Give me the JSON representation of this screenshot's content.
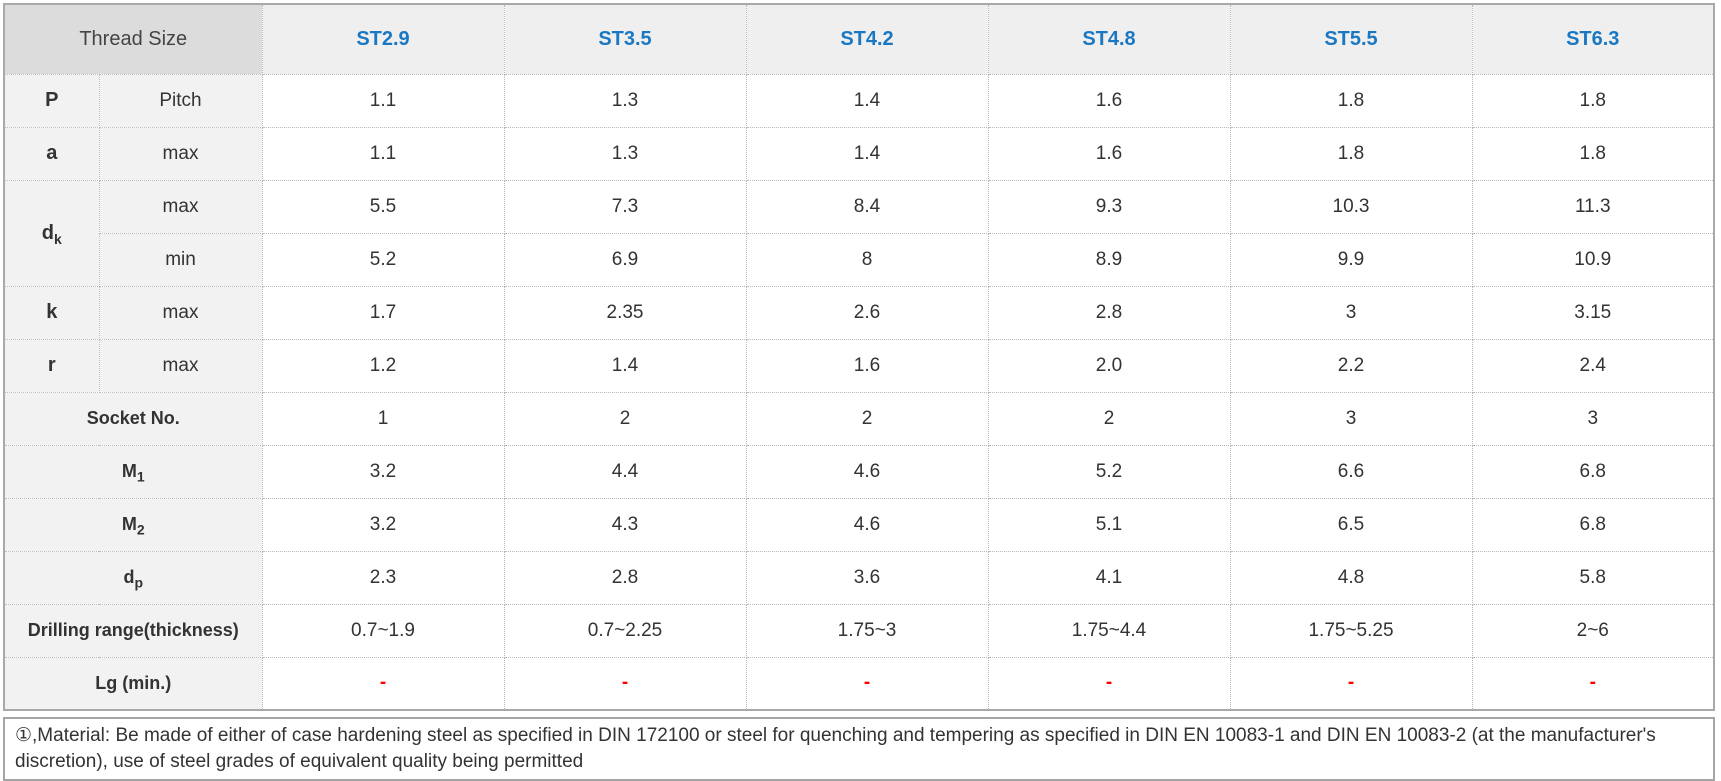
{
  "table": {
    "corner_label": "Thread Size",
    "columns": [
      "ST2.9",
      "ST3.5",
      "ST4.2",
      "ST4.8",
      "ST5.5",
      "ST6.3"
    ],
    "rows": [
      {
        "label": "P",
        "sub": "",
        "qualifier": "Pitch",
        "layout": "two-label",
        "values": [
          "1.1",
          "1.3",
          "1.4",
          "1.6",
          "1.8",
          "1.8"
        ]
      },
      {
        "label": "a",
        "sub": "",
        "qualifier": "max",
        "layout": "two-label",
        "values": [
          "1.1",
          "1.3",
          "1.4",
          "1.6",
          "1.8",
          "1.8"
        ]
      },
      {
        "label": "d",
        "sub": "k",
        "qualifier": "max",
        "layout": "rowspan-first",
        "values": [
          "5.5",
          "7.3",
          "8.4",
          "9.3",
          "10.3",
          "11.3"
        ]
      },
      {
        "label": "",
        "sub": "",
        "qualifier": "min",
        "layout": "rowspan-cont",
        "values": [
          "5.2",
          "6.9",
          "8",
          "8.9",
          "9.9",
          "10.9"
        ]
      },
      {
        "label": "k",
        "sub": "",
        "qualifier": "max",
        "layout": "two-label",
        "values": [
          "1.7",
          "2.35",
          "2.6",
          "2.8",
          "3",
          "3.15"
        ]
      },
      {
        "label": "r",
        "sub": "",
        "qualifier": "max",
        "layout": "two-label",
        "values": [
          "1.2",
          "1.4",
          "1.6",
          "2.0",
          "2.2",
          "2.4"
        ]
      },
      {
        "label": "Socket No.",
        "sub": "",
        "qualifier": "",
        "layout": "merged",
        "values": [
          "1",
          "2",
          "2",
          "2",
          "3",
          "3"
        ]
      },
      {
        "label": "M",
        "sub": "1",
        "qualifier": "",
        "layout": "merged",
        "values": [
          "3.2",
          "4.4",
          "4.6",
          "5.2",
          "6.6",
          "6.8"
        ]
      },
      {
        "label": "M",
        "sub": "2",
        "qualifier": "",
        "layout": "merged",
        "values": [
          "3.2",
          "4.3",
          "4.6",
          "5.1",
          "6.5",
          "6.8"
        ]
      },
      {
        "label": "d",
        "sub": "p",
        "qualifier": "",
        "layout": "merged",
        "values": [
          "2.3",
          "2.8",
          "3.6",
          "4.1",
          "4.8",
          "5.8"
        ]
      },
      {
        "label": "Drilling range(thickness)",
        "sub": "",
        "qualifier": "",
        "layout": "merged",
        "values": [
          "0.7~1.9",
          "0.7~2.25",
          "1.75~3",
          "1.75~4.4",
          "1.75~5.25",
          "2~6"
        ]
      },
      {
        "label": "Lg (min.)",
        "sub": "",
        "qualifier": "",
        "layout": "merged",
        "red": true,
        "values": [
          "-",
          "-",
          "-",
          "-",
          "-",
          "-"
        ]
      }
    ]
  },
  "footnote": {
    "text": "①,Material: Be made of either of case hardening steel as specified in DIN 172100 or steel for quenching and tempering as specified in DIN EN 10083-1 and DIN EN 10083-2 (at the manufacturer's discretion), use of steel grades of equivalent quality being permitted"
  },
  "colors": {
    "header_blue": "#1a78c2",
    "dash_red": "#fe0000",
    "corner_gray": "#dcdcdc",
    "header_gray": "#efefef",
    "label_gray": "#f2f2f2"
  }
}
